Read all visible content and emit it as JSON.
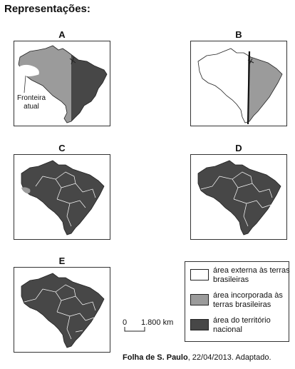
{
  "heading": "Representações:",
  "panels": [
    {
      "label": "A",
      "annotation": "Fronteira atual"
    },
    {
      "label": "B"
    },
    {
      "label": "C"
    },
    {
      "label": "D"
    },
    {
      "label": "E"
    }
  ],
  "legend": [
    {
      "text": "área externa às terras brasileiras",
      "color": "#ffffff"
    },
    {
      "text": "área incorporada às terras brasileiras",
      "color": "#9b9b9b"
    },
    {
      "text": "área do território nacional",
      "color": "#474747"
    }
  ],
  "scale": {
    "zero": "0",
    "distance": "1.800 km"
  },
  "source": {
    "publication": "Folha de S. Paulo",
    "rest": ", 22/04/2013. Adaptado."
  },
  "colors": {
    "dark": "#474747",
    "mid": "#9b9b9b",
    "white": "#ffffff",
    "border": "#333333"
  }
}
